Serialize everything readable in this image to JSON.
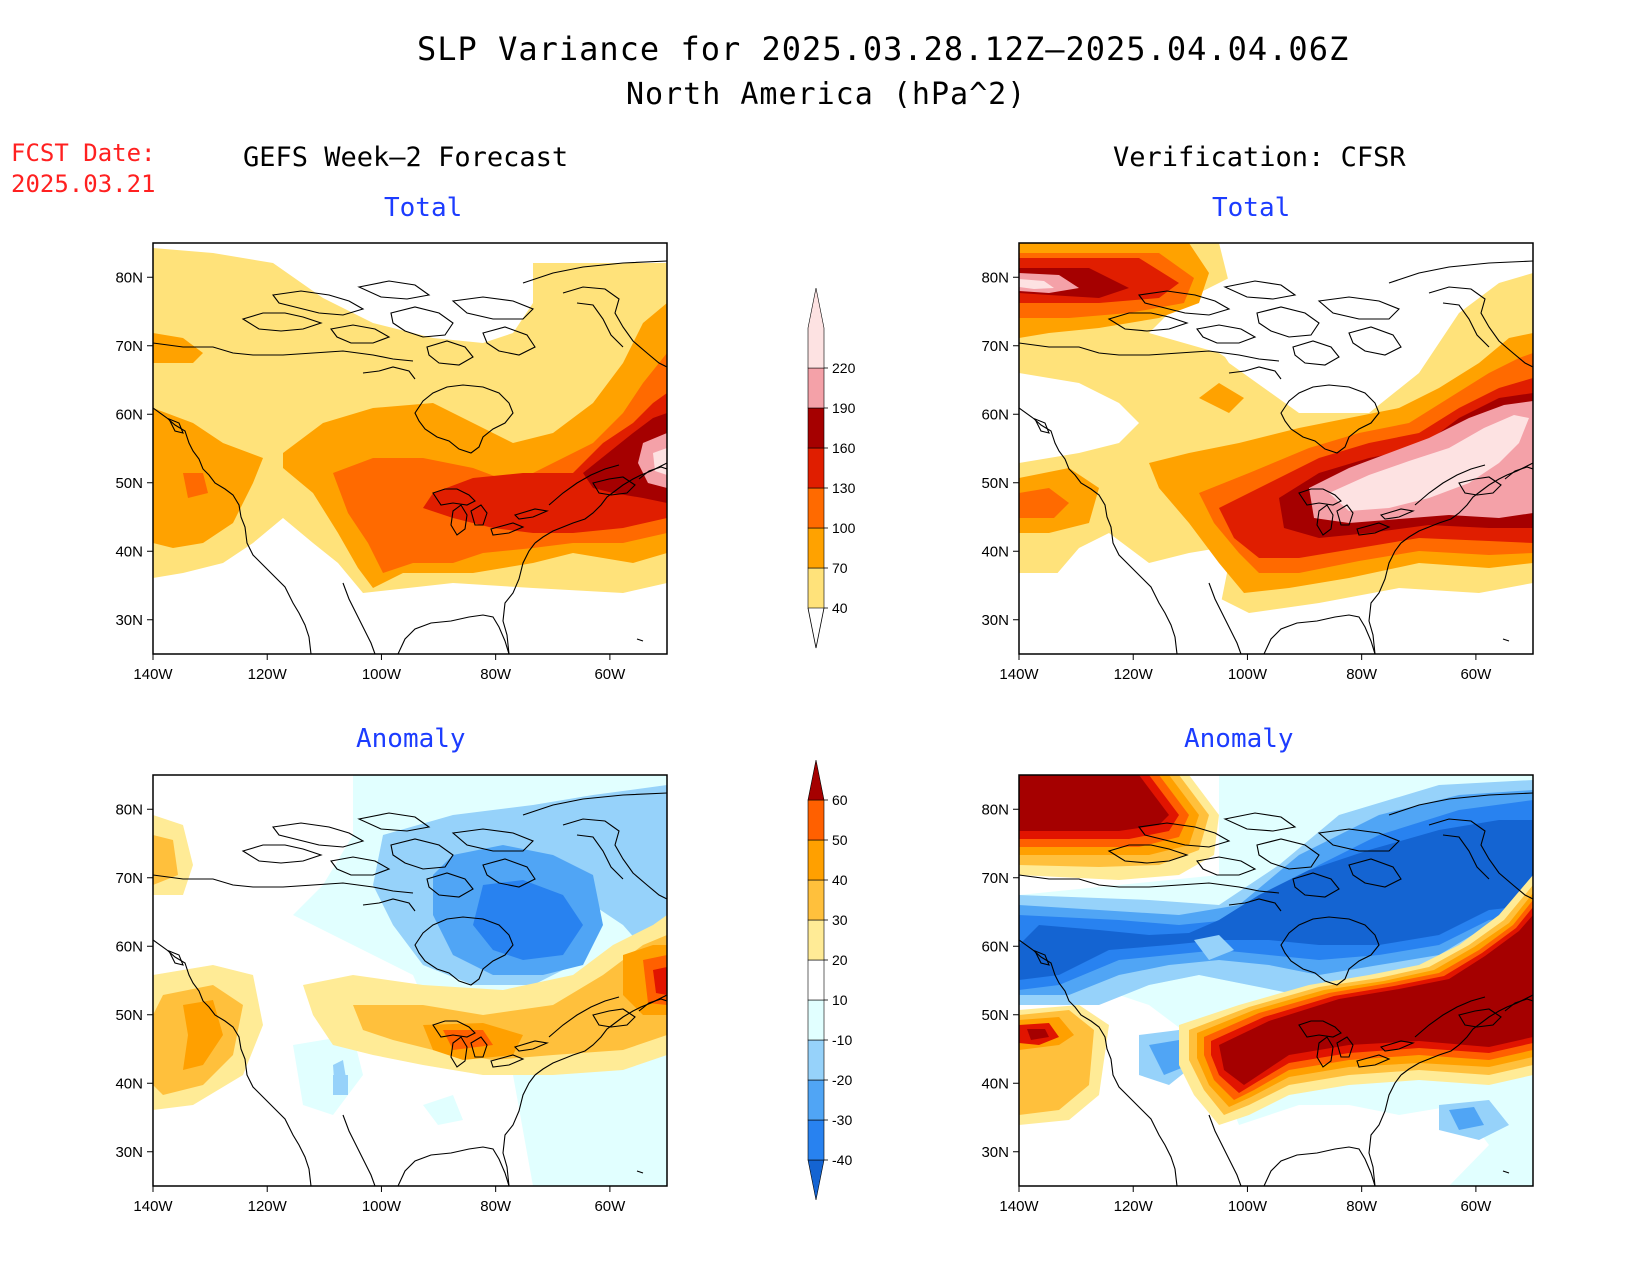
{
  "header": {
    "title": "SLP Variance for 2025.03.28.12Z–2025.04.04.06Z",
    "subtitle": "North America (hPa^2)",
    "fcst_label": "FCST Date:",
    "fcst_date": "2025.03.21"
  },
  "sections": {
    "left": "GEFS Week–2 Forecast",
    "right": "Verification: CFSR"
  },
  "panels": [
    {
      "id": "fcst-total",
      "title": "Total"
    },
    {
      "id": "verif-total",
      "title": "Total"
    },
    {
      "id": "fcst-anomaly",
      "title": "Anomaly"
    },
    {
      "id": "verif-anomaly",
      "title": "Anomaly"
    }
  ],
  "axes": {
    "lat_labels": [
      "80N",
      "70N",
      "60N",
      "50N",
      "40N",
      "30N"
    ],
    "lon_labels": [
      "140W",
      "120W",
      "100W",
      "80W",
      "60W"
    ],
    "lat_range": [
      25,
      85
    ],
    "lon_range": [
      -140,
      -50
    ]
  },
  "colorbars": {
    "total": {
      "levels": [
        "40",
        "70",
        "100",
        "130",
        "160",
        "190",
        "220"
      ],
      "colors": [
        "#ffe27a",
        "#ffa200",
        "#ff6a00",
        "#e01e00",
        "#a50000",
        "#f4a1a8",
        "#fde2e2"
      ]
    },
    "anomaly": {
      "levels": [
        "-40",
        "-30",
        "-20",
        "-10",
        "10",
        "20",
        "30",
        "40",
        "50",
        "60"
      ],
      "colors": [
        "#1464d2",
        "#2882f0",
        "#50a5f5",
        "#96d2fa",
        "#e1ffff",
        "#ffffff",
        "#ffeb96",
        "#ffc03c",
        "#ffa000",
        "#ff6000",
        "#e11400",
        "#a50000"
      ]
    }
  },
  "colors": {
    "title_blue": "#1c3cff",
    "fcst_red": "#ff2020"
  }
}
